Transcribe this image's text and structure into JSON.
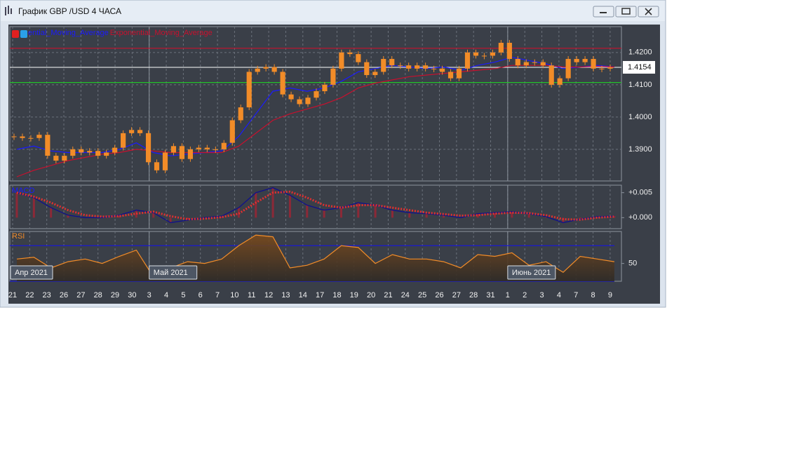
{
  "window": {
    "title": "График GBP /USD  4 ЧАСА"
  },
  "chart_data": [
    {
      "type": "candlestick",
      "color": "#f28c28",
      "close": [
        1.394,
        1.3935,
        1.3935,
        1.3945,
        1.388,
        1.3865,
        1.388,
        1.39,
        1.389,
        1.3895,
        1.388,
        1.389,
        1.3905,
        1.395,
        1.396,
        1.395,
        1.386,
        1.3835,
        1.389,
        1.391,
        1.387,
        1.39,
        1.3905,
        1.39,
        1.39,
        1.392,
        1.399,
        1.403,
        1.414,
        1.415,
        1.4155,
        1.414,
        1.407,
        1.4055,
        1.404,
        1.406,
        1.408,
        1.41,
        1.415,
        1.42,
        1.4195,
        1.417,
        1.413,
        1.414,
        1.418,
        1.416,
        1.416,
        1.415,
        1.416,
        1.415,
        1.415,
        1.414,
        1.412,
        1.415,
        1.42,
        1.419,
        1.419,
        1.42,
        1.423,
        1.418,
        1.416,
        1.417,
        1.417,
        1.416,
        1.41,
        1.412,
        1.418,
        1.417,
        1.418,
        1.415,
        1.415,
        1.4154
      ],
      "series": [
        {
          "name": "ential_Moving_Average",
          "color": "#1a1aff",
          "values": [
            1.39,
            1.391,
            1.3895,
            1.389,
            1.389,
            1.389,
            1.39,
            1.392,
            1.389,
            1.388,
            1.3885,
            1.389,
            1.3895,
            1.394,
            1.401,
            1.408,
            1.409,
            1.408,
            1.409,
            1.411,
            1.414,
            1.415,
            1.416,
            1.4155,
            1.415,
            1.4155,
            1.4145,
            1.416,
            1.417,
            1.4185,
            1.4175,
            1.4165,
            1.415,
            1.4155,
            1.416,
            1.4155
          ]
        },
        {
          "name": "Exponential_Moving_Average",
          "color": "#c8102e",
          "values": [
            1.3815,
            1.3835,
            1.385,
            1.3865,
            1.3875,
            1.3885,
            1.389,
            1.39,
            1.3895,
            1.389,
            1.389,
            1.389,
            1.389,
            1.391,
            1.395,
            1.399,
            1.401,
            1.4025,
            1.404,
            1.406,
            1.409,
            1.4105,
            1.4115,
            1.4125,
            1.413,
            1.4135,
            1.414,
            1.4145,
            1.415,
            1.416,
            1.416,
            1.416,
            1.4155,
            1.4155,
            1.4157,
            1.4155
          ]
        }
      ],
      "levels": [
        {
          "value": 1.4213,
          "color": "#c8102e"
        },
        {
          "value": 1.4107,
          "color": "#22c02a"
        }
      ],
      "last_price": {
        "value": 1.4154,
        "label": "1.4154"
      },
      "ylim": [
        1.3802,
        1.428
      ],
      "yticks": [
        {
          "value": 1.42,
          "label": "1.4200"
        },
        {
          "value": 1.41,
          "label": "1.4100"
        },
        {
          "value": 1.4,
          "label": "1.4000"
        },
        {
          "value": 1.39,
          "label": "1.3900"
        }
      ],
      "grid": true
    },
    {
      "type": "line",
      "title": "MACD",
      "series": [
        {
          "color": "#10108c",
          "values": [
            0.005,
            0.004,
            0.002,
            0.0005,
            0.0,
            0.0,
            0.0005,
            0.0015,
            0.001,
            -0.001,
            -0.0005,
            0.0,
            0.0003,
            0.002,
            0.005,
            0.006,
            0.0045,
            0.0025,
            0.0015,
            0.002,
            0.003,
            0.0025,
            0.0015,
            0.001,
            0.0008,
            0.0005,
            0.0,
            0.0008,
            0.001,
            0.0012,
            0.0008,
            0.0002,
            -0.001,
            -0.0003,
            0.0002,
            0.0003
          ]
        },
        {
          "color": "#e03030",
          "values": [
            0.005,
            0.0042,
            0.003,
            0.0015,
            0.0005,
            0.0002,
            0.0003,
            0.0008,
            0.0012,
            0.0003,
            -0.0003,
            -0.0002,
            0.0001,
            0.0008,
            0.003,
            0.005,
            0.0052,
            0.004,
            0.0025,
            0.002,
            0.0025,
            0.0025,
            0.002,
            0.0015,
            0.001,
            0.0007,
            0.0004,
            0.0005,
            0.0008,
            0.001,
            0.0009,
            0.0005,
            -0.0003,
            -0.0004,
            0.0,
            0.0002
          ]
        }
      ],
      "ylim": [
        -0.0022,
        0.0065
      ],
      "yticks": [
        {
          "value": 0.005,
          "label": "+0.005"
        },
        {
          "value": 0,
          "label": "+0.000"
        }
      ],
      "grid": true
    },
    {
      "type": "area",
      "title": "RSI",
      "color": "#f28c28",
      "values": [
        55,
        57,
        45,
        52,
        55,
        50,
        58,
        65,
        35,
        45,
        52,
        50,
        55,
        70,
        82,
        80,
        45,
        48,
        55,
        70,
        68,
        50,
        60,
        55,
        55,
        52,
        45,
        60,
        58,
        62,
        48,
        52,
        40,
        58,
        55,
        52
      ],
      "levels": [
        70,
        30
      ],
      "ylim": [
        30,
        86
      ],
      "yticks": [
        50
      ],
      "x_labels": [
        "21",
        "22",
        "23",
        "26",
        "27",
        "28",
        "29",
        "30",
        "3",
        "4",
        "5",
        "6",
        "7",
        "10",
        "11",
        "12",
        "13",
        "14",
        "17",
        "18",
        "19",
        "20",
        "21",
        "24",
        "25",
        "26",
        "27",
        "28",
        "31",
        "1",
        "2",
        "3",
        "4",
        "7",
        "8",
        "9"
      ],
      "month_labels": [
        "Апр 2021",
        null,
        null,
        null,
        null,
        null,
        null,
        null,
        "Май 2021",
        null,
        null,
        null,
        null,
        null,
        null,
        null,
        null,
        null,
        null,
        null,
        null,
        null,
        null,
        null,
        null,
        null,
        null,
        null,
        null,
        "Июнь 2021",
        null,
        null,
        null,
        null,
        null,
        null
      ],
      "grid": true
    }
  ]
}
